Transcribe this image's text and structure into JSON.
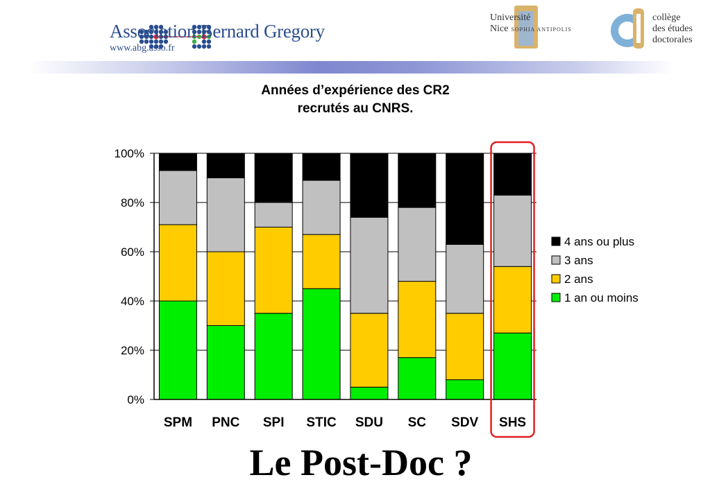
{
  "header": {
    "abg_name": "Association Bernard Gregory",
    "abg_url": "www.abg.asso.fr",
    "unice_top": "Université",
    "unice_bottom": "Nice",
    "unice_sub": "SOPHIA ANTIPOLIS",
    "ced_line1": "collège",
    "ced_line2": "des études",
    "ced_line3": "doctorales"
  },
  "slide_title": "Le Post-Doc ?",
  "colors": {
    "four_plus": "#000000",
    "three": "#c0c0c0",
    "two": "#ffcc00",
    "one": "#00ee00",
    "highlight": "#e02020"
  },
  "chart_data": {
    "type": "bar",
    "stacked": true,
    "percent": true,
    "title_line1": "Années d’expérience des CR2",
    "title_line2": "recrutés au CNRS.",
    "categories": [
      "SPM",
      "PNC",
      "SPI",
      "STIC",
      "SDU",
      "SC",
      "SDV",
      "SHS"
    ],
    "series": [
      {
        "name": "1 an ou moins",
        "values": [
          40,
          30,
          35,
          45,
          5,
          17,
          8,
          27
        ]
      },
      {
        "name": "2 ans",
        "values": [
          31,
          30,
          35,
          22,
          30,
          31,
          27,
          27
        ]
      },
      {
        "name": "3 ans",
        "values": [
          22,
          30,
          10,
          22,
          39,
          30,
          28,
          29
        ]
      },
      {
        "name": "4 ans ou plus",
        "values": [
          7,
          10,
          20,
          11,
          26,
          22,
          37,
          17
        ]
      }
    ],
    "y_ticks": [
      "0%",
      "20%",
      "40%",
      "60%",
      "80%",
      "100%"
    ],
    "ylim": [
      0,
      100
    ],
    "legend_position": "right",
    "legend_order": [
      "4 ans ou plus",
      "3 ans",
      "2 ans",
      "1 an ou moins"
    ],
    "grid": true,
    "highlighted_category": "SHS"
  }
}
